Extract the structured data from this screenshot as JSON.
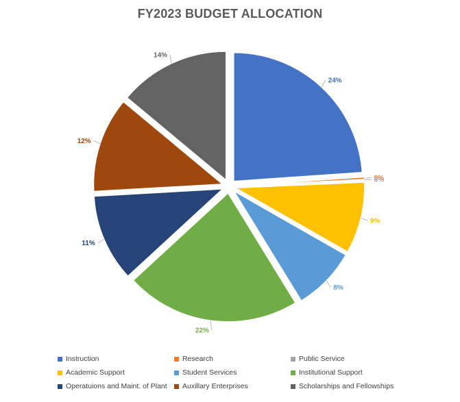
{
  "chart_data": {
    "type": "pie",
    "title": "FY2023 BUDGET ALLOCATION",
    "legend_position": "bottom",
    "slices": [
      {
        "name": "Instruction",
        "value": 24,
        "label": "24%",
        "color": "#4472C4"
      },
      {
        "name": "Research",
        "value": 0.3,
        "label": "0%",
        "color": "#ED7D31"
      },
      {
        "name": "Public Service",
        "value": 0.1,
        "label": "0%",
        "color": "#A5A5A5"
      },
      {
        "name": "Academic Support",
        "value": 9,
        "label": "9%",
        "color": "#FFC000"
      },
      {
        "name": "Student Services",
        "value": 8,
        "label": "8%",
        "color": "#5B9BD5"
      },
      {
        "name": "Institutional Support",
        "value": 22,
        "label": "22%",
        "color": "#70AD47"
      },
      {
        "name": "Operatuions and Maint. of Plant",
        "value": 11,
        "label": "11%",
        "color": "#264478"
      },
      {
        "name": "Auxillary Enterprises",
        "value": 12,
        "label": "12%",
        "color": "#9E480E"
      },
      {
        "name": "Scholarships and Fellowships",
        "value": 14,
        "label": "14%",
        "color": "#636363"
      }
    ]
  }
}
